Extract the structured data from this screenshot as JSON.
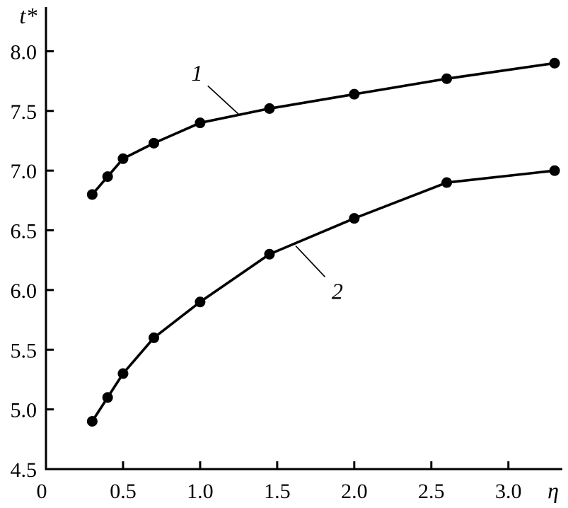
{
  "chart_data": {
    "type": "line",
    "title": "",
    "xlabel": "η",
    "ylabel": "t*",
    "xlim": [
      0,
      3.35
    ],
    "ylim": [
      4.5,
      8.37
    ],
    "grid": false,
    "legend": "none",
    "marker": "circle",
    "x_ticks": [
      0,
      0.5,
      1.0,
      1.5,
      2.0,
      2.5,
      3.0
    ],
    "x_tick_labels": [
      "0",
      "0.5",
      "1.0",
      "1.5",
      "2.0",
      "2.5",
      "3.0"
    ],
    "y_ticks": [
      4.5,
      5.0,
      5.5,
      6.0,
      6.5,
      7.0,
      7.5,
      8.0
    ],
    "y_tick_labels": [
      "4.5",
      "5.0",
      "5.5",
      "6.0",
      "6.5",
      "7.0",
      "7.5",
      "8.0"
    ],
    "x": [
      0.3,
      0.4,
      0.5,
      0.7,
      1.0,
      1.45,
      2.0,
      2.6,
      3.3
    ],
    "series": [
      {
        "name": "1",
        "values": [
          6.8,
          6.95,
          7.1,
          7.23,
          7.4,
          7.52,
          7.64,
          7.77,
          7.9
        ]
      },
      {
        "name": "2",
        "values": [
          4.9,
          5.1,
          5.3,
          5.6,
          5.9,
          6.3,
          6.6,
          6.9,
          7.0
        ]
      }
    ],
    "annotations": [
      {
        "label": "1",
        "label_x": 0.98,
        "label_y": 7.82,
        "line_from_x": 1.05,
        "line_from_y": 7.71,
        "line_to_x": 1.26,
        "line_to_y": 7.46
      },
      {
        "label": "2",
        "label_x": 1.89,
        "label_y": 5.99,
        "line_from_x": 1.81,
        "line_from_y": 6.11,
        "line_to_x": 1.62,
        "line_to_y": 6.37
      }
    ],
    "colors": {
      "line": "#000000",
      "marker": "#000000",
      "axis": "#000000"
    }
  }
}
